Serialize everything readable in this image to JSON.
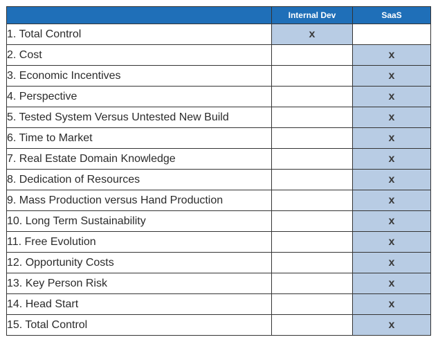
{
  "columns": {
    "feature": "",
    "internal_dev": "Internal Dev",
    "saas": "SaaS"
  },
  "accent_colors": {
    "header_bg": "#1f6fb8",
    "checked_cell_bg": "#b8cce4"
  },
  "rows": [
    {
      "label": "1. Total Control",
      "internal_dev": "x",
      "saas": ""
    },
    {
      "label": "2. Cost",
      "internal_dev": "",
      "saas": "x"
    },
    {
      "label": "3. Economic Incentives",
      "internal_dev": "",
      "saas": "x"
    },
    {
      "label": "4. Perspective",
      "internal_dev": "",
      "saas": "x"
    },
    {
      "label": "5. Tested System Versus Untested New Build",
      "internal_dev": "",
      "saas": "x"
    },
    {
      "label": "6. Time to Market",
      "internal_dev": "",
      "saas": "x"
    },
    {
      "label": "7. Real Estate Domain Knowledge",
      "internal_dev": "",
      "saas": "x"
    },
    {
      "label": "8. Dedication of Resources",
      "internal_dev": "",
      "saas": "x"
    },
    {
      "label": "9. Mass Production versus Hand Production",
      "internal_dev": "",
      "saas": "x"
    },
    {
      "label": "10. Long Term Sustainability",
      "internal_dev": "",
      "saas": "x"
    },
    {
      "label": "11. Free Evolution",
      "internal_dev": "",
      "saas": "x"
    },
    {
      "label": "12. Opportunity Costs",
      "internal_dev": "",
      "saas": "x"
    },
    {
      "label": "13. Key Person Risk",
      "internal_dev": "",
      "saas": "x"
    },
    {
      "label": "14. Head Start",
      "internal_dev": "",
      "saas": "x"
    },
    {
      "label": "15. Total Control",
      "internal_dev": "",
      "saas": "x"
    }
  ]
}
